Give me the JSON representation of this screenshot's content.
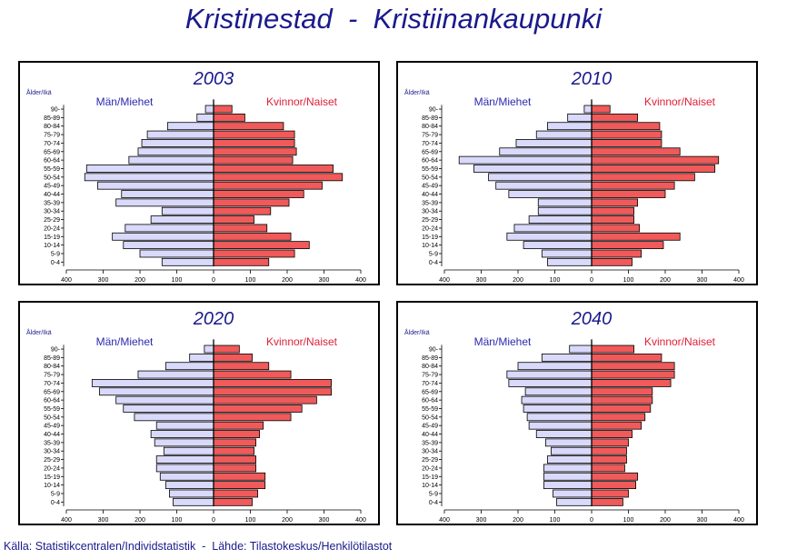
{
  "title": "Kristinestad  -  Kristiinankaupunki",
  "source": "Källa: Statistikcentralen/Individstatistik  -  Lähde: Tilastokeskus/Henkilötilastot",
  "colors": {
    "men": "#d9d9fb",
    "women": "#f05a5a",
    "men_text": "#2a2ab0",
    "women_text": "#e0203a",
    "title": "#1a1a8c"
  },
  "chart_data": [
    {
      "type": "bar",
      "year": "2003",
      "axis_label": "Ålder/Ikä",
      "men_label": "Män/Miehet",
      "women_label": "Kvinnor/Naiset",
      "categories": [
        "0-4",
        "5-9",
        "10-14",
        "15-19",
        "20-24",
        "25-29",
        "30-34",
        "35-39",
        "40-44",
        "45-49",
        "50-54",
        "55-59",
        "60-64",
        "65-69",
        "70-74",
        "75-79",
        "80-84",
        "85-89",
        "90-"
      ],
      "x_ticks": [
        "400",
        "300",
        "200",
        "100",
        "0",
        "100",
        "200",
        "300",
        "400"
      ],
      "xlim": [
        -400,
        400
      ],
      "series": [
        {
          "name": "Män/Miehet",
          "values": [
            140,
            200,
            245,
            275,
            240,
            170,
            140,
            265,
            250,
            315,
            350,
            345,
            230,
            205,
            195,
            180,
            125,
            45,
            22
          ]
        },
        {
          "name": "Kvinnor/Naiset",
          "values": [
            150,
            220,
            260,
            210,
            145,
            110,
            155,
            205,
            245,
            295,
            350,
            325,
            215,
            225,
            220,
            220,
            190,
            85,
            50
          ]
        }
      ]
    },
    {
      "type": "bar",
      "year": "2010",
      "axis_label": "Ålder/Ikä",
      "men_label": "Män/Miehet",
      "women_label": "Kvinnor/Naiset",
      "categories": [
        "0-4",
        "5-9",
        "10-14",
        "15-19",
        "20-24",
        "25-29",
        "30-34",
        "35-39",
        "40-44",
        "45-49",
        "50-54",
        "55-59",
        "60-64",
        "65-69",
        "70-74",
        "75-79",
        "80-84",
        "85-89",
        "90-"
      ],
      "x_ticks": [
        "400",
        "300",
        "200",
        "100",
        "0",
        "100",
        "200",
        "300",
        "400"
      ],
      "xlim": [
        -400,
        400
      ],
      "series": [
        {
          "name": "Män/Miehet",
          "values": [
            120,
            135,
            185,
            230,
            210,
            170,
            145,
            145,
            225,
            260,
            280,
            320,
            360,
            250,
            205,
            150,
            120,
            65,
            20
          ]
        },
        {
          "name": "Kvinnor/Naiset",
          "values": [
            110,
            135,
            195,
            240,
            130,
            115,
            115,
            125,
            200,
            225,
            280,
            335,
            345,
            240,
            190,
            190,
            185,
            125,
            50
          ]
        }
      ]
    },
    {
      "type": "bar",
      "year": "2020",
      "axis_label": "Ålder/Ikä",
      "men_label": "Män/Miehet",
      "women_label": "Kvinnor/Naiset",
      "categories": [
        "0-4",
        "5-9",
        "10-14",
        "15-19",
        "20-24",
        "25-29",
        "30-34",
        "35-39",
        "40-44",
        "45-49",
        "50-54",
        "55-59",
        "60-64",
        "65-69",
        "70-74",
        "75-79",
        "80-84",
        "85-89",
        "90-"
      ],
      "x_ticks": [
        "400",
        "300",
        "200",
        "100",
        "0",
        "100",
        "200",
        "300",
        "400"
      ],
      "xlim": [
        -400,
        400
      ],
      "series": [
        {
          "name": "Män/Miehet",
          "values": [
            110,
            120,
            130,
            145,
            155,
            155,
            135,
            160,
            170,
            155,
            215,
            245,
            265,
            310,
            330,
            205,
            130,
            65,
            25
          ]
        },
        {
          "name": "Kvinnor/Naiset",
          "values": [
            105,
            120,
            140,
            140,
            115,
            115,
            110,
            115,
            125,
            135,
            210,
            240,
            280,
            320,
            320,
            210,
            150,
            105,
            70
          ]
        }
      ]
    },
    {
      "type": "bar",
      "year": "2040",
      "axis_label": "Ålder/Ikä",
      "men_label": "Män/Miehet",
      "women_label": "Kvinnor/Naiset",
      "categories": [
        "0-4",
        "5-9",
        "10-14",
        "15-19",
        "20-24",
        "25-29",
        "30-34",
        "35-39",
        "40-44",
        "45-49",
        "50-54",
        "55-59",
        "60-64",
        "65-69",
        "70-74",
        "75-79",
        "80-84",
        "85-89",
        "90-"
      ],
      "x_ticks": [
        "400",
        "300",
        "200",
        "100",
        "0",
        "100",
        "200",
        "300",
        "400"
      ],
      "xlim": [
        -400,
        400
      ],
      "series": [
        {
          "name": "Män/Miehet",
          "values": [
            95,
            105,
            130,
            130,
            130,
            120,
            110,
            125,
            150,
            170,
            175,
            185,
            190,
            180,
            225,
            230,
            200,
            135,
            60
          ]
        },
        {
          "name": "Kvinnor/Naiset",
          "values": [
            85,
            100,
            120,
            125,
            90,
            95,
            95,
            100,
            110,
            135,
            145,
            160,
            165,
            165,
            215,
            225,
            225,
            190,
            115
          ]
        }
      ]
    }
  ]
}
